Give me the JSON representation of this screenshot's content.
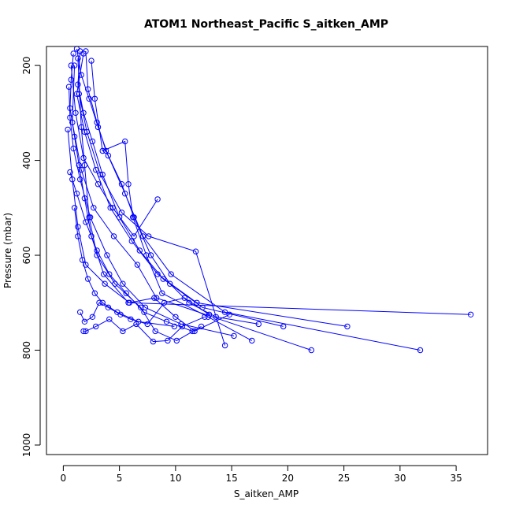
{
  "chart_data": {
    "type": "scatter",
    "title": "ATOM1 Northeast_Pacific S_aitken_AMP",
    "xlabel": "S_aitken_AMP",
    "ylabel": "Pressure (mbar)",
    "xlim": [
      -1.5,
      37.8
    ],
    "ylim": [
      1020,
      160
    ],
    "y_reversed": true,
    "x_ticks": [
      "0",
      "5",
      "10",
      "15",
      "20",
      "25",
      "30",
      "35"
    ],
    "y_ticks": [
      "200",
      "400",
      "600",
      "800",
      "1000"
    ],
    "x_tick_values": [
      0,
      5,
      10,
      15,
      20,
      25,
      30,
      35
    ],
    "y_tick_values": [
      200,
      400,
      600,
      800,
      1000
    ],
    "series_color": "#0000ff",
    "marker": "open-circle",
    "connected": true,
    "series": [
      {
        "x": [
          1.2,
          1.6,
          2.3,
          3.1,
          4.0,
          5.2,
          6.3,
          7.8,
          9.5,
          11.2,
          13.6,
          17.4
        ],
        "y": [
          165,
          220,
          270,
          330,
          390,
          450,
          520,
          600,
          660,
          700,
          730,
          745
        ]
      },
      {
        "x": [
          1.5,
          1.3,
          1.8,
          2.6,
          3.5,
          5.0,
          6.8,
          8.9,
          12.4,
          19.6
        ],
        "y": [
          170,
          240,
          300,
          360,
          430,
          520,
          590,
          650,
          710,
          750
        ]
      },
      {
        "x": [
          0.9,
          0.7,
          0.6,
          1.0,
          1.4,
          1.9,
          2.5,
          3.6,
          5.8,
          36.3
        ],
        "y": [
          175,
          230,
          290,
          350,
          410,
          480,
          560,
          640,
          700,
          725
        ]
      },
      {
        "x": [
          2.0,
          2.2,
          3.0,
          3.8,
          5.5,
          7.1,
          9.6,
          14.4,
          31.8
        ],
        "y": [
          170,
          250,
          320,
          380,
          470,
          560,
          640,
          720,
          800
        ]
      },
      {
        "x": [
          1.8,
          1.2,
          1.9,
          2.9,
          4.2,
          6.1,
          8.4,
          11.9,
          25.3
        ],
        "y": [
          175,
          260,
          340,
          420,
          500,
          570,
          640,
          700,
          750
        ]
      },
      {
        "x": [
          0.5,
          0.6,
          0.9,
          1.5,
          2.4,
          3.9,
          5.3,
          7.3,
          10.5,
          15.2
        ],
        "y": [
          245,
          310,
          375,
          440,
          520,
          600,
          660,
          710,
          745,
          770
        ]
      },
      {
        "x": [
          2.5,
          2.8,
          3.5,
          5.5,
          5.8,
          6.2,
          7.4,
          8.8,
          12.9,
          16.8
        ],
        "y": [
          190,
          270,
          380,
          360,
          450,
          520,
          600,
          680,
          730,
          780
        ]
      },
      {
        "x": [
          1.0,
          0.8,
          1.6,
          2.7,
          4.5,
          6.6,
          8.3,
          22.1
        ],
        "y": [
          200,
          320,
          420,
          500,
          560,
          620,
          690,
          800
        ]
      },
      {
        "x": [
          1.3,
          1.6,
          1.9,
          2.3,
          3.0,
          4.6,
          6.9,
          8.2,
          10.1,
          12.3
        ],
        "y": [
          185,
          330,
          410,
          520,
          600,
          660,
          710,
          760,
          780,
          750
        ]
      },
      {
        "x": [
          0.7,
          1.1,
          1.8,
          3.1,
          4.4,
          6.3,
          8.4
        ],
        "y": [
          200,
          300,
          395,
          450,
          500,
          560,
          482
        ]
      },
      {
        "x": [
          1.4,
          2.1,
          3.3,
          5.2,
          7.6,
          11.8,
          14.4
        ],
        "y": [
          260,
          340,
          430,
          510,
          560,
          592,
          790
        ]
      },
      {
        "x": [
          0.6,
          1.2,
          2.0,
          3.0,
          4.1,
          5.6,
          7.2,
          9.2,
          11.5
        ],
        "y": [
          425,
          470,
          530,
          590,
          640,
          680,
          720,
          740,
          760
        ]
      },
      {
        "x": [
          1.0,
          1.3,
          1.7,
          2.2,
          2.8,
          3.5,
          4.8,
          6.7,
          9.9
        ],
        "y": [
          500,
          560,
          610,
          650,
          680,
          700,
          720,
          740,
          750
        ]
      },
      {
        "x": [
          1.5,
          1.9,
          2.6,
          3.2,
          4.0,
          5.1,
          6.0,
          7.5,
          9.0,
          10.8,
          13.0
        ],
        "y": [
          720,
          740,
          730,
          700,
          710,
          725,
          735,
          745,
          700,
          690,
          725
        ]
      },
      {
        "x": [
          1.8,
          2.0,
          2.9,
          4.1,
          5.3,
          6.5,
          8.0,
          9.3,
          10.6,
          12.6
        ],
        "y": [
          760,
          760,
          750,
          735,
          760,
          745,
          782,
          780,
          750,
          730
        ]
      },
      {
        "x": [
          0.4,
          0.8,
          1.3,
          2.0,
          3.7,
          5.9,
          8.1,
          10.0,
          11.7,
          14.8
        ],
        "y": [
          335,
          440,
          540,
          620,
          660,
          700,
          690,
          730,
          760,
          725
        ]
      }
    ]
  }
}
